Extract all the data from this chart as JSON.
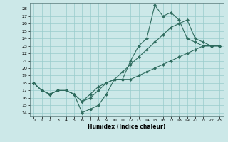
{
  "title": "",
  "xlabel": "Humidex (Indice chaleur)",
  "bg_color": "#cce8e8",
  "line_color": "#2e6b5e",
  "grid_color": "#99cccc",
  "xlim": [
    -0.5,
    23.5
  ],
  "ylim": [
    13.5,
    28.8
  ],
  "yticks": [
    14,
    15,
    16,
    17,
    18,
    19,
    20,
    21,
    22,
    23,
    24,
    25,
    26,
    27,
    28
  ],
  "xticks": [
    0,
    1,
    2,
    3,
    4,
    5,
    6,
    7,
    8,
    9,
    10,
    11,
    12,
    13,
    14,
    15,
    16,
    17,
    18,
    19,
    20,
    21,
    22,
    23
  ],
  "line1_x": [
    0,
    1,
    2,
    3,
    4,
    5,
    6,
    7,
    8,
    9,
    10,
    11,
    12,
    13,
    14,
    15,
    16,
    17,
    18,
    19,
    20,
    21,
    22,
    23
  ],
  "line1_y": [
    18.0,
    17.0,
    16.5,
    17.0,
    17.0,
    16.5,
    14.0,
    14.5,
    15.0,
    16.5,
    18.5,
    18.5,
    21.0,
    23.0,
    24.0,
    28.5,
    27.0,
    27.5,
    26.5,
    24.0,
    23.5,
    23.0,
    23.0,
    23.0
  ],
  "line2_x": [
    0,
    1,
    2,
    3,
    4,
    5,
    6,
    7,
    8,
    9,
    10,
    11,
    12,
    13,
    14,
    15,
    16,
    17,
    18,
    19,
    20,
    21,
    22,
    23
  ],
  "line2_y": [
    18.0,
    17.0,
    16.5,
    17.0,
    17.0,
    16.5,
    15.5,
    16.5,
    17.5,
    18.0,
    18.5,
    19.5,
    20.5,
    21.5,
    22.5,
    23.5,
    24.5,
    25.5,
    26.0,
    26.5,
    24.0,
    23.5,
    23.0,
    23.0
  ],
  "line3_x": [
    0,
    1,
    2,
    3,
    4,
    5,
    6,
    7,
    8,
    9,
    10,
    11,
    12,
    13,
    14,
    15,
    16,
    17,
    18,
    19,
    20,
    21,
    22,
    23
  ],
  "line3_y": [
    18.0,
    17.0,
    16.5,
    17.0,
    17.0,
    16.5,
    15.5,
    16.0,
    17.0,
    18.0,
    18.5,
    18.5,
    18.5,
    19.0,
    19.5,
    20.0,
    20.5,
    21.0,
    21.5,
    22.0,
    22.5,
    23.0,
    23.0,
    23.0
  ]
}
